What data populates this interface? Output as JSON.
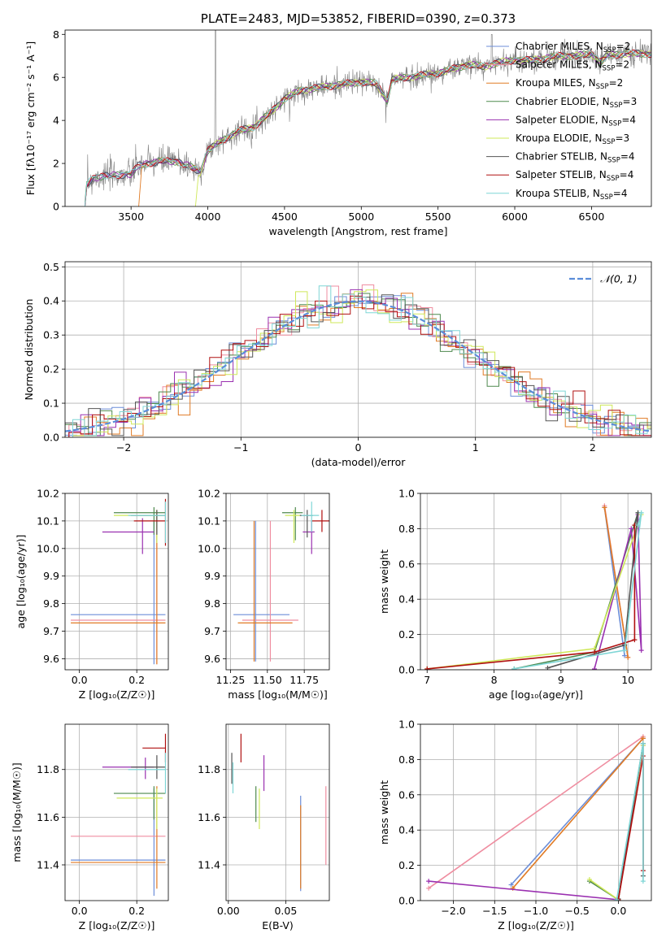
{
  "palette": {
    "chabrier_miles": "#6c8ed8",
    "salpeter_miles": "#ef8da0",
    "kroupa_miles": "#e07b25",
    "chabrier_elodie": "#4f8a4f",
    "salpeter_elodie": "#9a30b0",
    "kroupa_elodie": "#cfe85a",
    "chabrier_stelib": "#555555",
    "salpeter_stelib": "#b01010",
    "kroupa_stelib": "#7fd6d6",
    "normal": "#5b8dd9",
    "grid": "#b0b0b0",
    "data": "#808080"
  },
  "chart_data": [
    {
      "id": "spectrum",
      "type": "line",
      "title": "PLATE=2483, MJD=53852, FIBERID=0390, z=0.373",
      "xlabel": "wavelength [Angstrom, rest frame]",
      "ylabel": "Flux [fλ10⁻¹⁷ erg cm⁻² s⁻¹ A⁻¹]",
      "xlim": [
        3070,
        6890
      ],
      "ylim": [
        0,
        8.2
      ],
      "xticks": [
        3500,
        4000,
        4500,
        5000,
        5500,
        6000,
        6500
      ],
      "yticks": [
        0,
        2,
        4,
        6,
        8
      ],
      "legend_position": "top-right",
      "legend": [
        {
          "label": "Chabrier MILES, N",
          "sub": "SSP",
          "suffix": "=2",
          "color_key": "chabrier_miles"
        },
        {
          "label": "Salpeter MILES, N",
          "sub": "SSP",
          "suffix": "=2",
          "color_key": "salpeter_miles"
        },
        {
          "label": "Kroupa MILES, N",
          "sub": "SSP",
          "suffix": "=2",
          "color_key": "kroupa_miles"
        },
        {
          "label": "Chabrier ELODIE, N",
          "sub": "SSP",
          "suffix": "=3",
          "color_key": "chabrier_elodie"
        },
        {
          "label": "Salpeter ELODIE, N",
          "sub": "SSP",
          "suffix": "=4",
          "color_key": "salpeter_elodie"
        },
        {
          "label": "Kroupa ELODIE, N",
          "sub": "SSP",
          "suffix": "=3",
          "color_key": "kroupa_elodie"
        },
        {
          "label": "Chabrier STELIB, N",
          "sub": "SSP",
          "suffix": "=4",
          "color_key": "chabrier_stelib"
        },
        {
          "label": "Salpeter STELIB, N",
          "sub": "SSP",
          "suffix": "=4",
          "color_key": "salpeter_stelib"
        },
        {
          "label": "Kroupa STELIB, N",
          "sub": "SSP",
          "suffix": "=4",
          "color_key": "kroupa_stelib"
        }
      ],
      "continuum": [
        [
          3200,
          0
        ],
        [
          3210,
          1.0
        ],
        [
          3250,
          1.3
        ],
        [
          3300,
          1.4
        ],
        [
          3400,
          1.45
        ],
        [
          3500,
          1.5
        ],
        [
          3550,
          1.9
        ],
        [
          3600,
          2.0
        ],
        [
          3700,
          2.1
        ],
        [
          3800,
          2.1
        ],
        [
          3900,
          1.8
        ],
        [
          3950,
          1.6
        ],
        [
          4000,
          2.6
        ],
        [
          4100,
          3.1
        ],
        [
          4200,
          3.5
        ],
        [
          4300,
          3.7
        ],
        [
          4400,
          4.3
        ],
        [
          4500,
          5.0
        ],
        [
          4600,
          5.4
        ],
        [
          4700,
          5.5
        ],
        [
          4800,
          5.6
        ],
        [
          4900,
          5.7
        ],
        [
          5000,
          5.8
        ],
        [
          5100,
          5.7
        ],
        [
          5170,
          4.9
        ],
        [
          5200,
          5.9
        ],
        [
          5300,
          6.0
        ],
        [
          5400,
          6.1
        ],
        [
          5500,
          6.2
        ],
        [
          5600,
          6.4
        ],
        [
          5700,
          6.6
        ],
        [
          5800,
          6.5
        ],
        [
          5900,
          6.7
        ],
        [
          6000,
          6.8
        ],
        [
          6100,
          6.8
        ],
        [
          6200,
          6.9
        ],
        [
          6300,
          7.0
        ],
        [
          6400,
          7.0
        ],
        [
          6500,
          7.1
        ],
        [
          6560,
          6.7
        ],
        [
          6600,
          7.0
        ],
        [
          6700,
          7.1
        ],
        [
          6800,
          7.1
        ],
        [
          6890,
          7.1
        ]
      ]
    },
    {
      "id": "residuals",
      "type": "histogram",
      "xlabel": "(data-model)/error",
      "ylabel": "Normed distribution",
      "xlim": [
        -2.5,
        2.5
      ],
      "ylim": [
        0,
        0.515
      ],
      "xticks": [
        -2,
        -1,
        0,
        1,
        2
      ],
      "yticks": [
        0.0,
        0.1,
        0.2,
        0.3,
        0.4,
        0.5
      ],
      "bin_width": 0.1,
      "legend_position": "top-right",
      "legend": [
        {
          "label": "𝒩(0, 1)",
          "color_key": "normal"
        }
      ]
    },
    {
      "id": "age_vs_Z",
      "type": "errorbar",
      "xlabel": "Z [log₁₀(Z/Z☉)]",
      "ylabel": "age  [log₁₀(age/yr)]",
      "xlim": [
        -0.05,
        0.31
      ],
      "ylim": [
        9.56,
        10.2
      ],
      "xticks": [
        0.0,
        0.2
      ],
      "yticks": [
        9.6,
        9.7,
        9.8,
        9.9,
        10.0,
        10.1,
        10.2
      ],
      "points": [
        {
          "x": 0.26,
          "xlo": -0.03,
          "xhi": 0.3,
          "y": 9.76,
          "ylo": 9.58,
          "yhi": 10.1,
          "color_key": "chabrier_miles"
        },
        {
          "x": 0.27,
          "xlo": -0.03,
          "xhi": 0.3,
          "y": 9.74,
          "ylo": 9.58,
          "yhi": 10.13,
          "color_key": "salpeter_miles"
        },
        {
          "x": 0.27,
          "xlo": -0.03,
          "xhi": 0.3,
          "y": 9.73,
          "ylo": 9.58,
          "yhi": 10.14,
          "color_key": "kroupa_miles"
        },
        {
          "x": 0.26,
          "xlo": 0.12,
          "xhi": 0.3,
          "y": 10.13,
          "ylo": 10.05,
          "yhi": 10.15,
          "color_key": "chabrier_elodie"
        },
        {
          "x": 0.22,
          "xlo": 0.08,
          "xhi": 0.26,
          "y": 10.06,
          "ylo": 9.98,
          "yhi": 10.11,
          "color_key": "salpeter_elodie"
        },
        {
          "x": 0.27,
          "xlo": 0.12,
          "xhi": 0.29,
          "y": 10.12,
          "ylo": 10.02,
          "yhi": 10.14,
          "color_key": "kroupa_elodie"
        },
        {
          "x": 0.27,
          "xlo": 0.18,
          "xhi": 0.3,
          "y": 10.12,
          "ylo": 10.05,
          "yhi": 10.14,
          "color_key": "chabrier_stelib"
        },
        {
          "x": 0.3,
          "xlo": 0.19,
          "xhi": 0.3,
          "y": 10.1,
          "ylo": 10.01,
          "yhi": 10.18,
          "color_key": "salpeter_stelib"
        },
        {
          "x": 0.3,
          "xlo": 0.17,
          "xhi": 0.3,
          "y": 10.12,
          "ylo": 10.02,
          "yhi": 10.17,
          "color_key": "kroupa_stelib"
        }
      ]
    },
    {
      "id": "age_vs_mass",
      "type": "errorbar",
      "xlabel": "mass [log₁₀(M/M☉)]",
      "ylabel": "",
      "xlim": [
        11.22,
        11.92
      ],
      "ylim": [
        9.56,
        10.2
      ],
      "xticks": [
        11.25,
        11.5,
        11.75
      ],
      "yticks": [
        9.6,
        9.7,
        9.8,
        9.9,
        10.0,
        10.1,
        10.2
      ],
      "points": [
        {
          "x": 11.42,
          "xlo": 11.27,
          "xhi": 11.65,
          "y": 9.76,
          "ylo": 9.59,
          "yhi": 10.1,
          "color_key": "chabrier_miles"
        },
        {
          "x": 11.52,
          "xlo": 11.33,
          "xhi": 11.71,
          "y": 9.74,
          "ylo": 9.59,
          "yhi": 10.1,
          "color_key": "salpeter_miles"
        },
        {
          "x": 11.41,
          "xlo": 11.3,
          "xhi": 11.67,
          "y": 9.73,
          "ylo": 9.59,
          "yhi": 10.1,
          "color_key": "kroupa_miles"
        },
        {
          "x": 11.69,
          "xlo": 11.6,
          "xhi": 11.74,
          "y": 10.13,
          "ylo": 10.03,
          "yhi": 10.15,
          "color_key": "chabrier_elodie"
        },
        {
          "x": 11.8,
          "xlo": 11.74,
          "xhi": 11.82,
          "y": 10.06,
          "ylo": 9.98,
          "yhi": 10.1,
          "color_key": "salpeter_elodie"
        },
        {
          "x": 11.68,
          "xlo": 11.62,
          "xhi": 11.72,
          "y": 10.12,
          "ylo": 10.02,
          "yhi": 10.14,
          "color_key": "kroupa_elodie"
        },
        {
          "x": 11.77,
          "xlo": 11.72,
          "xhi": 11.81,
          "y": 10.12,
          "ylo": 10.04,
          "yhi": 10.14,
          "color_key": "chabrier_stelib"
        },
        {
          "x": 11.87,
          "xlo": 11.8,
          "xhi": 11.92,
          "y": 10.1,
          "ylo": 10.06,
          "yhi": 10.14,
          "color_key": "salpeter_stelib"
        },
        {
          "x": 11.8,
          "xlo": 11.73,
          "xhi": 11.85,
          "y": 10.12,
          "ylo": 10.06,
          "yhi": 10.17,
          "color_key": "kroupa_stelib"
        }
      ]
    },
    {
      "id": "weight_vs_age",
      "type": "line",
      "xlabel": "age  [log₁₀(age/yr)]",
      "ylabel": "mass weight",
      "xlim": [
        6.9,
        10.35
      ],
      "ylim": [
        0,
        1.0
      ],
      "xticks": [
        7,
        8,
        9,
        10
      ],
      "yticks": [
        0.0,
        0.2,
        0.4,
        0.6,
        0.8,
        1.0
      ],
      "series": [
        {
          "color_key": "chabrier_miles",
          "x": [
            9.95,
            9.65
          ],
          "y": [
            0.08,
            0.92
          ]
        },
        {
          "color_key": "salpeter_miles",
          "x": [
            10.0,
            9.65
          ],
          "y": [
            0.07,
            0.93
          ]
        },
        {
          "color_key": "kroupa_miles",
          "x": [
            10.0,
            9.65
          ],
          "y": [
            0.07,
            0.92
          ]
        },
        {
          "color_key": "chabrier_elodie",
          "x": [
            8.3,
            9.5,
            10.15
          ],
          "y": [
            0.005,
            0.1,
            0.89
          ]
        },
        {
          "color_key": "salpeter_elodie",
          "x": [
            9.5,
            10.05,
            10.2,
            10.15
          ],
          "y": [
            0.005,
            0.8,
            0.11,
            0.88
          ]
        },
        {
          "color_key": "kroupa_elodie",
          "x": [
            7.0,
            9.5,
            10.2
          ],
          "y": [
            0.005,
            0.12,
            0.88
          ]
        },
        {
          "color_key": "chabrier_stelib",
          "x": [
            8.8,
            9.95,
            10.15,
            10.1
          ],
          "y": [
            0.01,
            0.14,
            0.89,
            0.82
          ]
        },
        {
          "color_key": "salpeter_stelib",
          "x": [
            7.0,
            9.5,
            10.1,
            10.1
          ],
          "y": [
            0.005,
            0.1,
            0.17,
            0.82
          ]
        },
        {
          "color_key": "kroupa_stelib",
          "x": [
            8.3,
            9.95,
            10.2,
            10.15
          ],
          "y": [
            0.005,
            0.11,
            0.89,
            0.82
          ]
        }
      ]
    },
    {
      "id": "mass_vs_Z",
      "type": "errorbar",
      "xlabel": "Z [log₁₀(Z/Z☉)]",
      "ylabel": "mass [log₁₀(M/M☉)]",
      "xlim": [
        -0.05,
        0.31
      ],
      "ylim": [
        11.25,
        11.99
      ],
      "xticks": [
        0.0,
        0.2
      ],
      "yticks": [
        11.4,
        11.6,
        11.8
      ],
      "points": [
        {
          "x": 0.26,
          "xlo": -0.03,
          "xhi": 0.3,
          "y": 11.42,
          "ylo": 11.27,
          "yhi": 11.72,
          "color_key": "chabrier_miles"
        },
        {
          "x": 0.27,
          "xlo": -0.03,
          "xhi": 0.3,
          "y": 11.52,
          "ylo": 11.52,
          "yhi": 11.52,
          "color_key": "salpeter_miles"
        },
        {
          "x": 0.27,
          "xlo": -0.03,
          "xhi": 0.3,
          "y": 11.41,
          "ylo": 11.3,
          "yhi": 11.73,
          "color_key": "kroupa_miles"
        },
        {
          "x": 0.26,
          "xlo": 0.12,
          "xhi": 0.3,
          "y": 11.7,
          "ylo": 11.59,
          "yhi": 11.73,
          "color_key": "chabrier_elodie"
        },
        {
          "x": 0.23,
          "xlo": 0.08,
          "xhi": 0.26,
          "y": 11.81,
          "ylo": 11.76,
          "yhi": 11.85,
          "color_key": "salpeter_elodie"
        },
        {
          "x": 0.27,
          "xlo": 0.13,
          "xhi": 0.29,
          "y": 11.68,
          "ylo": 11.55,
          "yhi": 11.72,
          "color_key": "kroupa_elodie"
        },
        {
          "x": 0.27,
          "xlo": 0.18,
          "xhi": 0.3,
          "y": 11.81,
          "ylo": 11.76,
          "yhi": 11.86,
          "color_key": "chabrier_stelib"
        },
        {
          "x": 0.3,
          "xlo": 0.22,
          "xhi": 0.3,
          "y": 11.89,
          "ylo": 11.83,
          "yhi": 11.95,
          "color_key": "salpeter_stelib"
        },
        {
          "x": 0.3,
          "xlo": 0.17,
          "xhi": 0.3,
          "y": 11.8,
          "ylo": 11.7,
          "yhi": 11.87,
          "color_key": "kroupa_stelib"
        }
      ]
    },
    {
      "id": "mass_vs_ebv",
      "type": "errorbar",
      "xlabel": "E(B-V)",
      "ylabel": "",
      "xlim": [
        -0.002,
        0.088
      ],
      "ylim": [
        11.25,
        11.99
      ],
      "xticks": [
        0.0,
        0.05
      ],
      "yticks": [
        11.4,
        11.6,
        11.8
      ],
      "points": [
        {
          "x": 0.063,
          "xlo": 0.063,
          "xhi": 0.063,
          "y": 11.42,
          "ylo": 11.29,
          "yhi": 11.69,
          "color_key": "chabrier_miles"
        },
        {
          "x": 0.085,
          "xlo": 0.085,
          "xhi": 0.085,
          "y": 11.52,
          "ylo": 11.4,
          "yhi": 11.73,
          "color_key": "salpeter_miles"
        },
        {
          "x": 0.063,
          "xlo": 0.063,
          "xhi": 0.063,
          "y": 11.41,
          "ylo": 11.3,
          "yhi": 11.65,
          "color_key": "kroupa_miles"
        },
        {
          "x": 0.024,
          "xlo": 0.024,
          "xhi": 0.024,
          "y": 11.7,
          "ylo": 11.58,
          "yhi": 11.73,
          "color_key": "chabrier_elodie"
        },
        {
          "x": 0.031,
          "xlo": 0.031,
          "xhi": 0.031,
          "y": 11.81,
          "ylo": 11.71,
          "yhi": 11.86,
          "color_key": "salpeter_elodie"
        },
        {
          "x": 0.027,
          "xlo": 0.027,
          "xhi": 0.027,
          "y": 11.68,
          "ylo": 11.55,
          "yhi": 11.72,
          "color_key": "kroupa_elodie"
        },
        {
          "x": 0.003,
          "xlo": 0.003,
          "xhi": 0.003,
          "y": 11.81,
          "ylo": 11.74,
          "yhi": 11.87,
          "color_key": "chabrier_stelib"
        },
        {
          "x": 0.011,
          "xlo": 0.011,
          "xhi": 0.011,
          "y": 11.89,
          "ylo": 11.83,
          "yhi": 11.95,
          "color_key": "salpeter_stelib"
        },
        {
          "x": 0.004,
          "xlo": 0.004,
          "xhi": 0.004,
          "y": 11.8,
          "ylo": 11.7,
          "yhi": 11.83,
          "color_key": "kroupa_stelib"
        }
      ]
    },
    {
      "id": "weight_vs_Z",
      "type": "line",
      "xlabel": "Z [log₁₀(Z/Z☉)]",
      "ylabel": "mass weight",
      "xlim": [
        -2.4,
        0.4
      ],
      "ylim": [
        0,
        1.0
      ],
      "xticks": [
        -2.0,
        -1.5,
        -1.0,
        -0.5,
        0.0
      ],
      "xtick_labels": [
        "−2.0",
        "−1.5",
        "−1.0",
        "−0.5",
        "0.0"
      ],
      "yticks": [
        0.0,
        0.2,
        0.4,
        0.6,
        0.8,
        1.0
      ],
      "series": [
        {
          "color_key": "chabrier_miles",
          "x": [
            -1.3,
            0.3
          ],
          "y": [
            0.09,
            0.92
          ]
        },
        {
          "color_key": "salpeter_miles",
          "x": [
            -2.3,
            0.3
          ],
          "y": [
            0.07,
            0.93
          ]
        },
        {
          "color_key": "kroupa_miles",
          "x": [
            -1.28,
            0.3
          ],
          "y": [
            0.07,
            0.92
          ]
        },
        {
          "color_key": "chabrier_elodie",
          "x": [
            -0.35,
            0.0,
            0.3
          ],
          "y": [
            0.11,
            0.005,
            0.89
          ]
        },
        {
          "color_key": "salpeter_elodie",
          "x": [
            -2.3,
            0.0,
            0.3
          ],
          "y": [
            0.11,
            0.005,
            0.88
          ]
        },
        {
          "color_key": "kroupa_elodie",
          "x": [
            -0.35,
            0.0,
            0.3
          ],
          "y": [
            0.12,
            0.005,
            0.88
          ]
        },
        {
          "color_key": "chabrier_stelib",
          "x": [
            0.0,
            0.3,
            0.3
          ],
          "y": [
            0.01,
            0.89,
            0.14
          ]
        },
        {
          "color_key": "salpeter_stelib",
          "x": [
            0.0,
            0.3,
            0.3
          ],
          "y": [
            0.005,
            0.82,
            0.17
          ]
        },
        {
          "color_key": "kroupa_stelib",
          "x": [
            -0.02,
            0.3,
            0.3
          ],
          "y": [
            0.005,
            0.89,
            0.11
          ]
        }
      ]
    }
  ]
}
